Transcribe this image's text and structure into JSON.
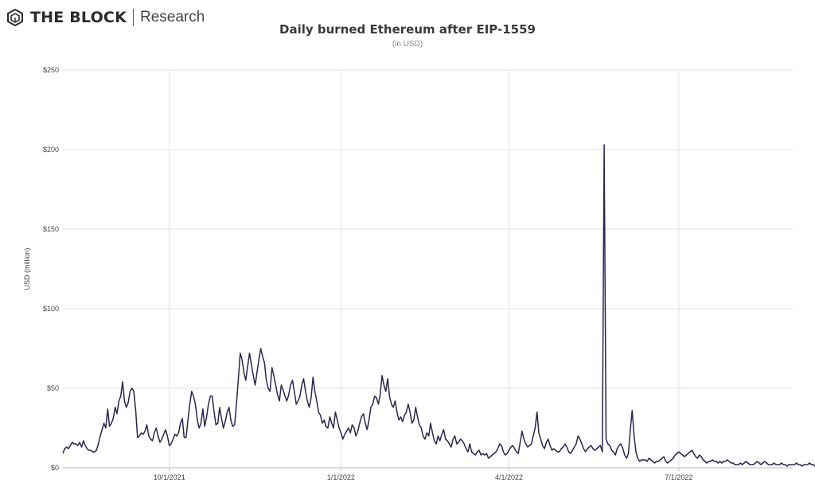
{
  "brand": {
    "name": "THE BLOCK",
    "sub": "Research"
  },
  "chart_data": {
    "type": "line",
    "title": "Daily burned Ethereum after EIP-1559",
    "subtitle": "(in USD)",
    "ylabel": "USD (million)",
    "xlabel": "",
    "ylim": [
      0,
      250
    ],
    "yticks": [
      0,
      50,
      100,
      150,
      200,
      250
    ],
    "ytick_labels": [
      "$0",
      "$50",
      "$100",
      "$150",
      "$200",
      "$250"
    ],
    "xticks": [
      "2021-10-01",
      "2022-01-01",
      "2022-04-01",
      "2022-07-01"
    ],
    "xtick_labels": [
      "10/1/2021",
      "1/1/2022",
      "4/1/2022",
      "7/1/2022"
    ],
    "x_range": [
      "2021-08-05",
      "2022-08-31"
    ],
    "grid": true,
    "color": "#2a2650",
    "series": [
      {
        "x_start": "2021-08-05",
        "x_step_days": 1,
        "values": [
          9,
          12,
          13,
          12,
          14,
          16,
          15,
          15,
          14,
          16,
          13,
          17,
          14,
          12,
          11,
          11,
          10,
          10,
          11,
          15,
          20,
          24,
          28,
          25,
          37,
          26,
          28,
          31,
          38,
          34,
          42,
          45,
          54,
          42,
          38,
          41,
          48,
          50,
          48,
          36,
          19,
          20,
          22,
          21,
          23,
          27,
          20,
          18,
          17,
          22,
          25,
          20,
          16,
          18,
          21,
          24,
          20,
          14,
          15,
          18,
          21,
          20,
          22,
          28,
          31,
          19,
          19,
          30,
          40,
          48,
          45,
          40,
          30,
          25,
          28,
          37,
          26,
          32,
          40,
          45,
          45,
          35,
          27,
          28,
          38,
          31,
          25,
          29,
          35,
          38,
          30,
          26,
          27,
          40,
          56,
          72,
          68,
          60,
          55,
          64,
          72,
          65,
          58,
          52,
          60,
          68,
          75,
          70,
          66,
          55,
          50,
          48,
          63,
          58,
          52,
          46,
          42,
          52,
          49,
          45,
          42,
          46,
          52,
          55,
          48,
          40,
          42,
          45,
          52,
          56,
          48,
          42,
          38,
          44,
          57,
          48,
          42,
          35,
          33,
          28,
          30,
          26,
          25,
          32,
          28,
          25,
          35,
          30,
          25,
          22,
          18,
          21,
          23,
          25,
          22,
          27,
          25,
          20,
          23,
          28,
          32,
          34,
          28,
          24,
          30,
          38,
          40,
          45,
          44,
          40,
          46,
          58,
          52,
          48,
          56,
          45,
          40,
          38,
          42,
          35,
          30,
          32,
          29,
          33,
          35,
          40,
          35,
          28,
          30,
          38,
          32,
          27,
          25,
          20,
          18,
          22,
          20,
          28,
          22,
          17,
          15,
          20,
          17,
          21,
          24,
          18,
          17,
          15,
          13,
          18,
          20,
          15,
          16,
          18,
          17,
          15,
          12,
          10,
          15,
          10,
          9,
          8,
          10,
          11,
          8,
          9,
          8,
          9,
          6,
          7,
          8,
          9,
          10,
          12,
          15,
          14,
          10,
          8,
          9,
          11,
          13,
          14,
          12,
          10,
          9,
          16,
          23,
          18,
          15,
          13,
          14,
          15,
          20,
          25,
          35,
          22,
          18,
          14,
          12,
          16,
          18,
          14,
          11,
          12,
          11,
          10,
          10,
          12,
          13,
          15,
          13,
          10,
          9,
          11,
          13,
          15,
          20,
          18,
          15,
          12,
          10,
          12,
          13,
          14,
          12,
          11,
          12,
          13,
          14,
          10,
          203,
          18,
          15,
          14,
          11,
          10,
          8,
          12,
          14,
          15,
          12,
          8,
          6,
          9,
          24,
          36,
          20,
          10,
          6,
          4,
          5,
          5,
          5,
          4,
          6,
          5,
          4,
          3,
          4,
          4,
          5,
          6,
          7,
          4,
          3,
          4,
          5,
          6,
          8,
          9,
          10,
          9,
          8,
          7,
          8,
          9,
          10,
          11,
          9,
          7,
          6,
          8,
          7,
          5,
          4,
          3,
          4,
          4,
          5,
          4,
          4,
          3,
          4,
          3,
          4,
          4,
          5,
          4,
          3,
          3,
          2,
          2,
          2,
          3,
          2,
          3,
          4,
          3,
          2,
          2,
          2,
          3,
          4,
          3,
          2,
          3,
          4,
          3,
          2,
          2,
          2,
          3,
          2,
          2,
          2,
          3,
          2,
          2,
          1,
          2,
          2,
          2,
          2,
          3,
          2,
          2,
          1,
          2,
          2,
          2,
          3,
          2,
          2,
          1,
          2,
          3,
          2,
          2,
          3,
          4,
          2,
          2,
          3,
          3,
          2,
          2,
          2,
          2,
          1,
          2,
          2,
          2,
          2,
          1,
          2,
          3,
          3
        ]
      }
    ]
  }
}
